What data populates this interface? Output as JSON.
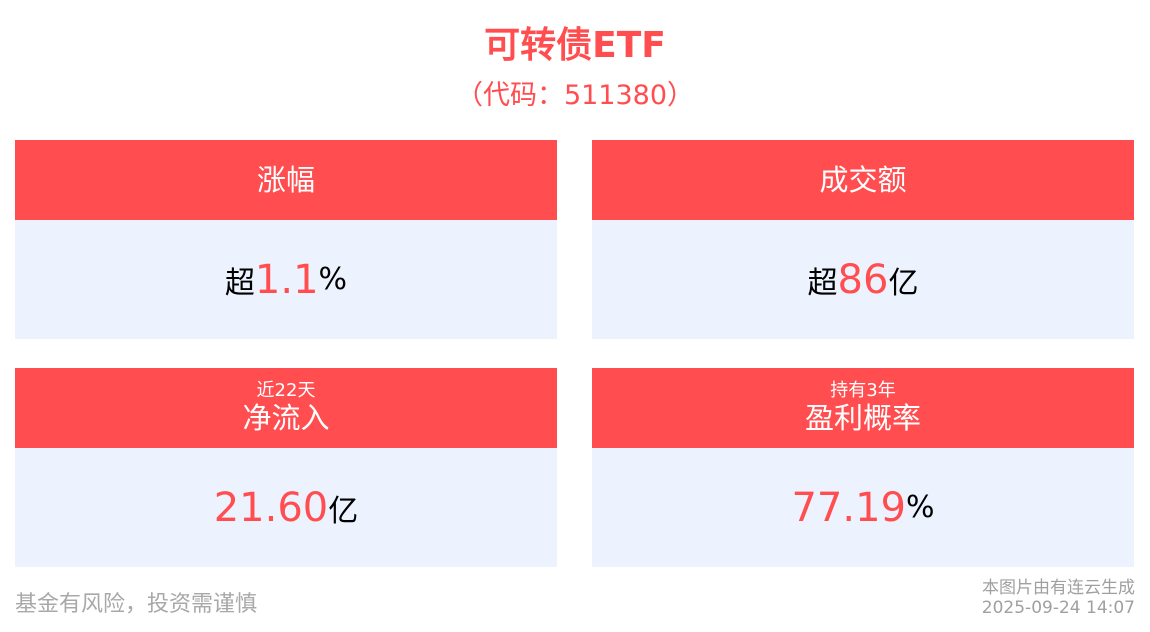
{
  "header": {
    "title": "可转债ETF",
    "code": "（代码：511380）"
  },
  "colors": {
    "accent": "#FF4D50",
    "card_body": "#EDF3FE"
  },
  "cards": [
    {
      "sub": "",
      "label": "涨幅",
      "prefix": "超",
      "value": "1.1",
      "unit": "%"
    },
    {
      "sub": "",
      "label": "成交额",
      "prefix": "超",
      "value": "86",
      "unit": "亿"
    },
    {
      "sub": "近22天",
      "label": "净流入",
      "prefix": "",
      "value": "21.60",
      "unit": "亿"
    },
    {
      "sub": "持有3年",
      "label": "盈利概率",
      "prefix": "",
      "value": "77.19",
      "unit": "%"
    }
  ],
  "footer": {
    "disclaimer": "基金有风险，投资需谨慎",
    "credit": "本图片由有连云生成",
    "timestamp": "2025-09-24 14:07"
  }
}
